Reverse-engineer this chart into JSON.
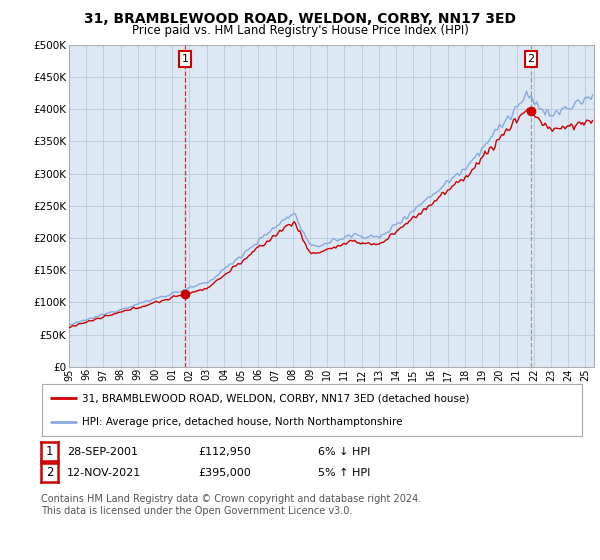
{
  "title": "31, BRAMBLEWOOD ROAD, WELDON, CORBY, NN17 3ED",
  "subtitle": "Price paid vs. HM Land Registry's House Price Index (HPI)",
  "title_fontsize": 10,
  "subtitle_fontsize": 8.5,
  "plot_bg_color": "#dce9f5",
  "fig_bg_color": "#ffffff",
  "red_line_color": "#cc0000",
  "blue_line_color": "#88aadd",
  "grid_color": "#b0c4d8",
  "ylim": [
    0,
    500000
  ],
  "yticks": [
    0,
    50000,
    100000,
    150000,
    200000,
    250000,
    300000,
    350000,
    400000,
    450000,
    500000
  ],
  "ytick_labels": [
    "£0",
    "£50K",
    "£100K",
    "£150K",
    "£200K",
    "£250K",
    "£300K",
    "£350K",
    "£400K",
    "£450K",
    "£500K"
  ],
  "xmin_year": 1995.0,
  "xmax_year": 2025.5,
  "xtick_years": [
    1995,
    1996,
    1997,
    1998,
    1999,
    2000,
    2001,
    2002,
    2003,
    2004,
    2005,
    2006,
    2007,
    2008,
    2009,
    2010,
    2011,
    2012,
    2013,
    2014,
    2015,
    2016,
    2017,
    2018,
    2019,
    2020,
    2021,
    2022,
    2023,
    2024,
    2025
  ],
  "sale1_year": 2001.75,
  "sale1_y": 112950,
  "sale2_year": 2021.87,
  "sale2_y": 395000,
  "legend_line1": "31, BRAMBLEWOOD ROAD, WELDON, CORBY, NN17 3ED (detached house)",
  "legend_line2": "HPI: Average price, detached house, North Northamptonshire",
  "table_row1": [
    "1",
    "28-SEP-2001",
    "£112,950",
    "6% ↓ HPI"
  ],
  "table_row2": [
    "2",
    "12-NOV-2021",
    "£395,000",
    "5% ↑ HPI"
  ],
  "footer": "Contains HM Land Registry data © Crown copyright and database right 2024.\nThis data is licensed under the Open Government Licence v3.0.",
  "footer_fontsize": 7,
  "sale_marker_color": "#cc0000",
  "sale_marker_size": 7
}
